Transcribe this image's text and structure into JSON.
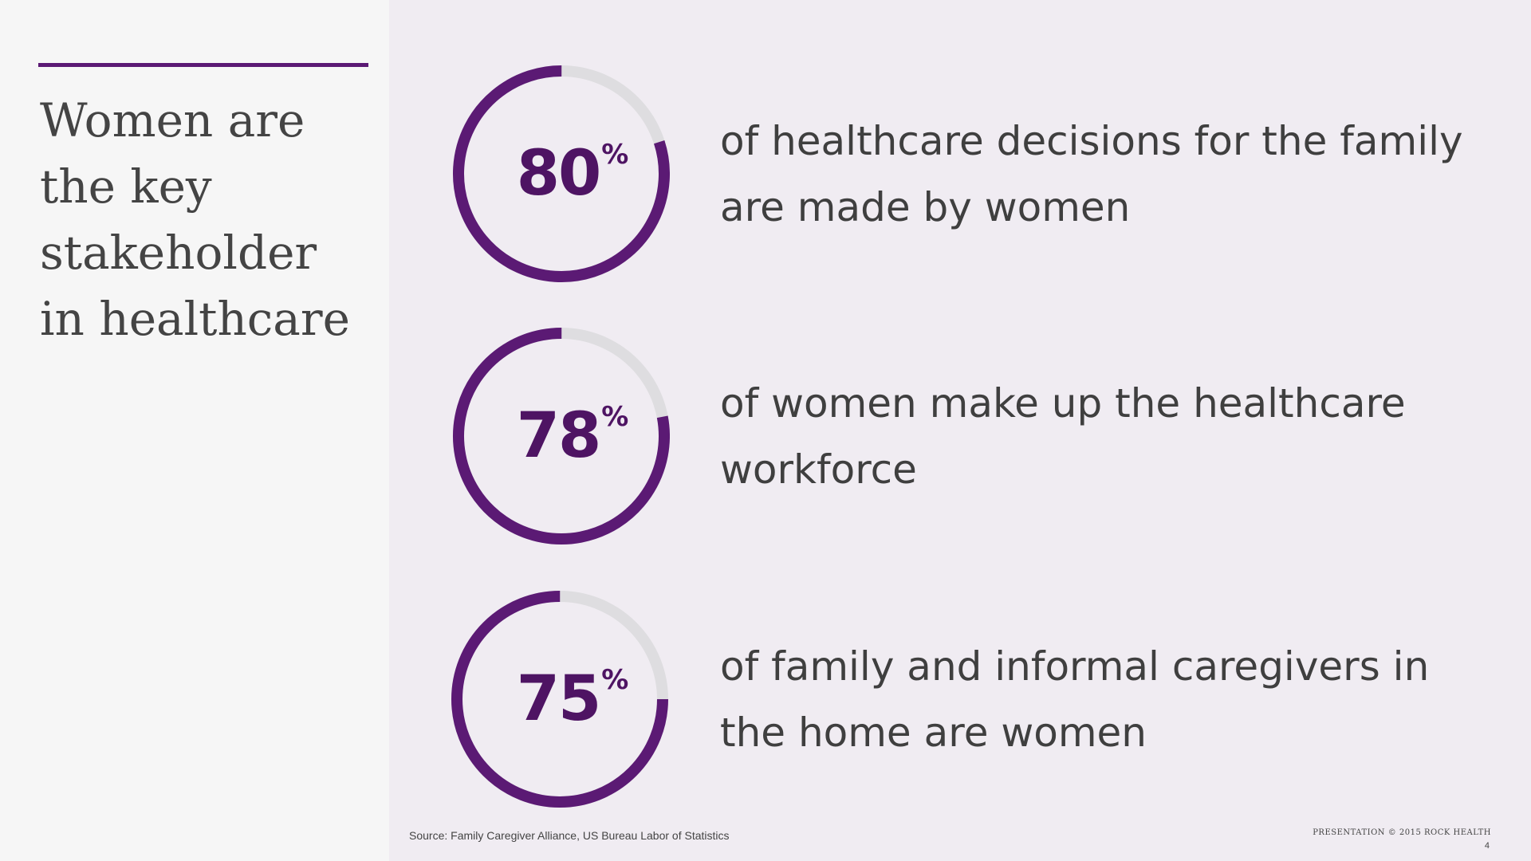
{
  "headline": "Women are the key stakeholder in healthcare",
  "stats": [
    {
      "value": "80",
      "unit": "%",
      "text": "of healthcare decisions for the family are made by women"
    },
    {
      "value": "78",
      "unit": "%",
      "text": "of women make up the healthcare workforce"
    },
    {
      "value": "75",
      "unit": "%",
      "text": "of family and informal caregivers in the home are women"
    }
  ],
  "chart_data": {
    "type": "pie",
    "subtype": "donut-progress",
    "categories": [
      "of healthcare decisions for the family are made by women",
      "of women make up the healthcare workforce",
      "of family and informal caregivers in the home are women"
    ],
    "values": [
      80,
      78,
      75
    ],
    "unit": "%",
    "ylim": [
      0,
      100
    ]
  },
  "footer": {
    "source": "Source: Family Caregiver Alliance, US Bureau Labor of Statistics",
    "copyright": "Presentation © 2015 Rock Health",
    "page_number": "4"
  },
  "colors": {
    "accent": "#5b1a74",
    "ring_track": "#dedde0",
    "value_text": "#4e1463"
  }
}
